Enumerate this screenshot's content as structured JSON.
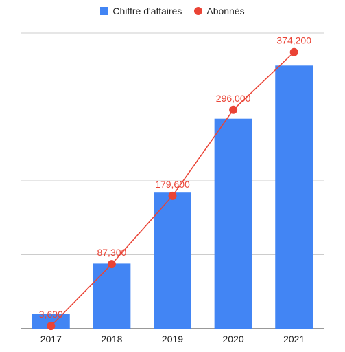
{
  "chart_data": {
    "type": "bar",
    "categories": [
      "2017",
      "2018",
      "2019",
      "2020",
      "2021"
    ],
    "series": [
      {
        "name": "Chiffre d'affaires",
        "type": "bar",
        "color": "#4285f4",
        "values": [
          1,
          4.4,
          9.2,
          14.2,
          17.8
        ],
        "axis": "left"
      },
      {
        "name": "Abonnés",
        "type": "line",
        "color": "#ea4335",
        "values": [
          3600,
          87300,
          179600,
          296000,
          374200
        ],
        "labels": [
          "3,600",
          "87,300",
          "179,600",
          "296,000",
          "374,200"
        ],
        "axis": "right"
      }
    ],
    "left_axis_range": [
      0,
      20
    ],
    "right_axis_range": [
      0,
      400000
    ],
    "grid": true,
    "legend_position": "top"
  }
}
